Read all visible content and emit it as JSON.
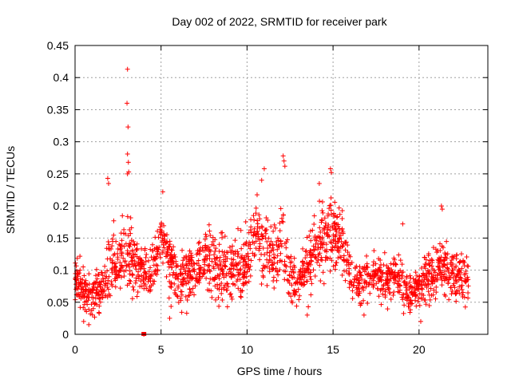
{
  "chart_data": {
    "type": "scatter",
    "title": "Day 002 of 2022, SRMTID for receiver park",
    "xlabel": "GPS time / hours",
    "ylabel": "SRMTID / TECUs",
    "xlim": [
      0,
      24
    ],
    "ylim": [
      0,
      0.45
    ],
    "xticks": [
      0,
      5,
      10,
      15,
      20
    ],
    "xtick_labels": [
      "0",
      "5",
      "10",
      "15",
      "20"
    ],
    "yticks": [
      0,
      0.05,
      0.1,
      0.15,
      0.2,
      0.25,
      0.3,
      0.35,
      0.4,
      0.45
    ],
    "ytick_labels": [
      "0",
      "0.05",
      "0.1",
      "0.15",
      "0.2",
      "0.25",
      "0.3",
      "0.35",
      "0.4",
      "0.45"
    ],
    "grid": true,
    "marker": "+",
    "marker_color": "#ff0000",
    "series_count": 1900,
    "envelope": [
      [
        0.0,
        0.09,
        0.03
      ],
      [
        0.5,
        0.06,
        0.025
      ],
      [
        1.0,
        0.065,
        0.025
      ],
      [
        1.5,
        0.07,
        0.02
      ],
      [
        2.0,
        0.1,
        0.035
      ],
      [
        2.5,
        0.11,
        0.03
      ],
      [
        3.0,
        0.13,
        0.045
      ],
      [
        3.5,
        0.11,
        0.03
      ],
      [
        4.0,
        0.1,
        0.025
      ],
      [
        4.5,
        0.1,
        0.03
      ],
      [
        5.0,
        0.15,
        0.035
      ],
      [
        5.5,
        0.12,
        0.035
      ],
      [
        6.0,
        0.08,
        0.025
      ],
      [
        6.5,
        0.09,
        0.03
      ],
      [
        7.0,
        0.1,
        0.03
      ],
      [
        7.5,
        0.12,
        0.035
      ],
      [
        8.0,
        0.11,
        0.035
      ],
      [
        8.5,
        0.1,
        0.035
      ],
      [
        9.0,
        0.1,
        0.03
      ],
      [
        9.5,
        0.1,
        0.035
      ],
      [
        10.0,
        0.11,
        0.035
      ],
      [
        10.5,
        0.17,
        0.04
      ],
      [
        11.0,
        0.13,
        0.04
      ],
      [
        11.5,
        0.12,
        0.035
      ],
      [
        12.0,
        0.15,
        0.045
      ],
      [
        12.5,
        0.09,
        0.025
      ],
      [
        13.0,
        0.08,
        0.025
      ],
      [
        13.5,
        0.1,
        0.03
      ],
      [
        14.0,
        0.14,
        0.04
      ],
      [
        14.5,
        0.15,
        0.04
      ],
      [
        15.0,
        0.16,
        0.035
      ],
      [
        15.5,
        0.15,
        0.035
      ],
      [
        16.0,
        0.09,
        0.025
      ],
      [
        16.5,
        0.08,
        0.025
      ],
      [
        17.0,
        0.09,
        0.025
      ],
      [
        17.5,
        0.09,
        0.025
      ],
      [
        18.0,
        0.08,
        0.025
      ],
      [
        18.5,
        0.09,
        0.025
      ],
      [
        19.0,
        0.08,
        0.025
      ],
      [
        19.5,
        0.06,
        0.02
      ],
      [
        20.0,
        0.07,
        0.02
      ],
      [
        20.5,
        0.09,
        0.03
      ],
      [
        21.0,
        0.1,
        0.03
      ],
      [
        21.5,
        0.1,
        0.03
      ],
      [
        22.0,
        0.09,
        0.025
      ],
      [
        22.5,
        0.09,
        0.025
      ],
      [
        22.9,
        0.09,
        0.025
      ]
    ],
    "outliers": [
      [
        3.05,
        0.413
      ],
      [
        3.02,
        0.36
      ],
      [
        3.08,
        0.323
      ],
      [
        3.05,
        0.281
      ],
      [
        3.1,
        0.268
      ],
      [
        3.05,
        0.25
      ],
      [
        3.12,
        0.253
      ],
      [
        1.9,
        0.243
      ],
      [
        1.95,
        0.235
      ],
      [
        5.1,
        0.222
      ],
      [
        11.0,
        0.258
      ],
      [
        10.85,
        0.24
      ],
      [
        12.1,
        0.278
      ],
      [
        12.15,
        0.27
      ],
      [
        12.2,
        0.262
      ],
      [
        14.85,
        0.258
      ],
      [
        14.9,
        0.252
      ],
      [
        14.2,
        0.235
      ],
      [
        21.3,
        0.2
      ],
      [
        21.35,
        0.195
      ],
      [
        19.05,
        0.172
      ],
      [
        4.0,
        0.0
      ],
      [
        0.5,
        0.02
      ],
      [
        0.8,
        0.015
      ],
      [
        5.5,
        0.025
      ],
      [
        20.1,
        0.02
      ],
      [
        13.5,
        0.03
      ],
      [
        16.8,
        0.03
      ]
    ]
  }
}
